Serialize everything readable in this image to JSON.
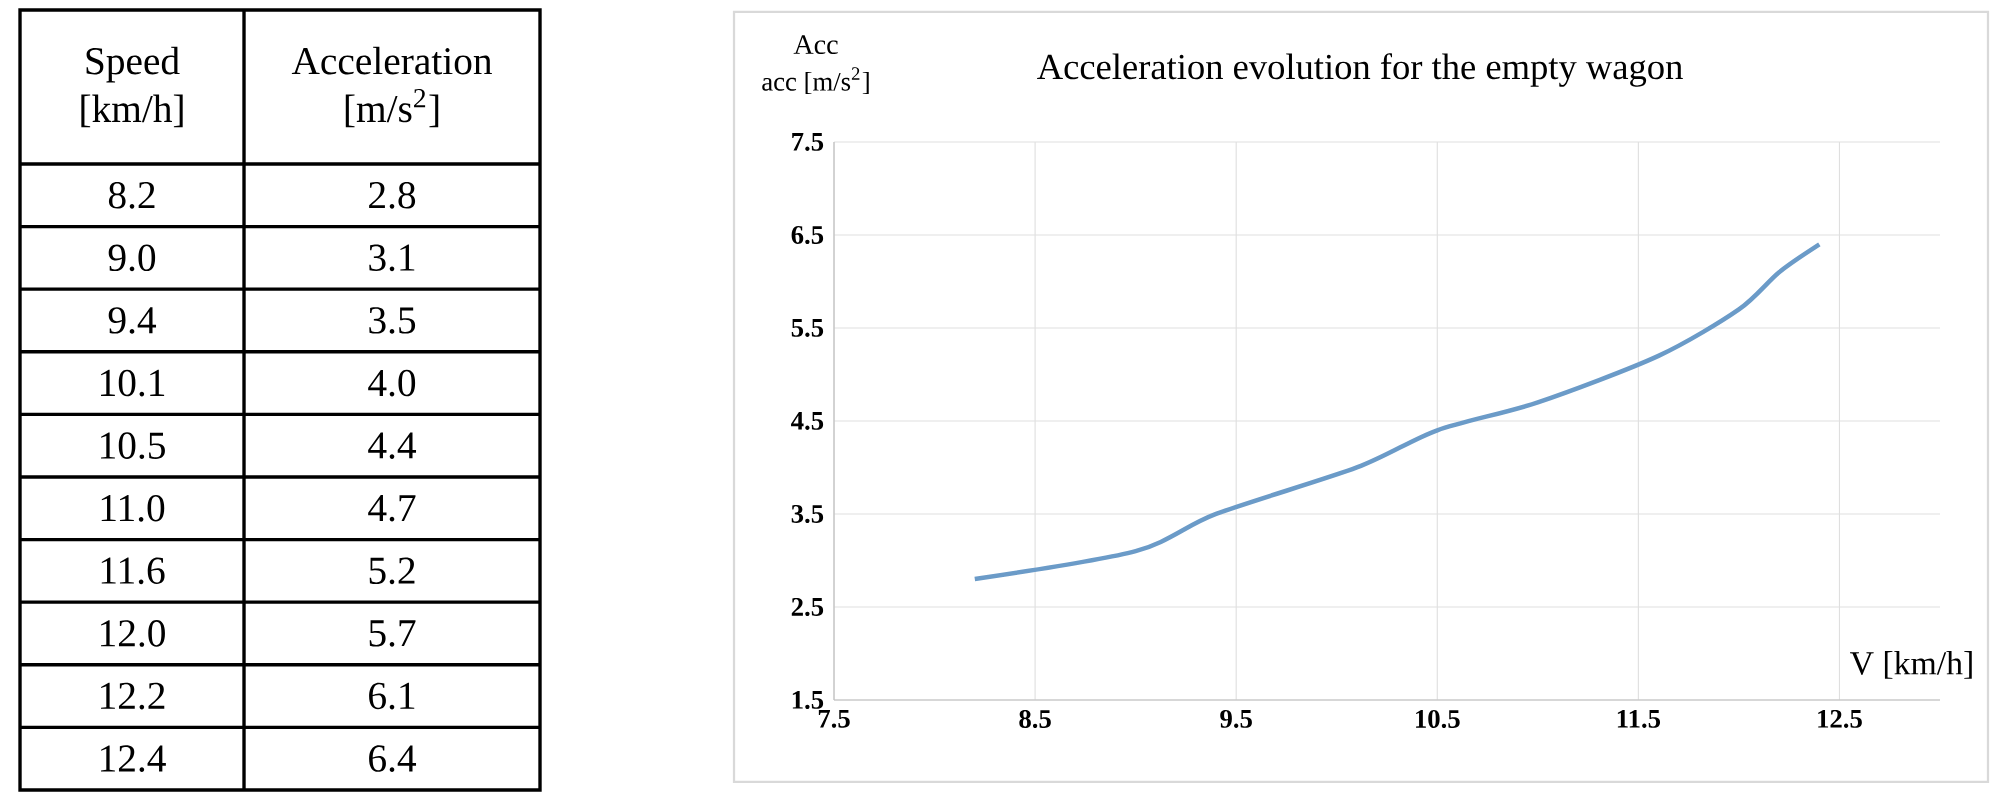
{
  "chart_data": [
    {
      "type": "other",
      "annotations": [
        "Speed [km/h]",
        "Acceleration [m/s$^{2}$]"
      ],
      "categories": [
        "8.2",
        "9.0",
        "9.4",
        "10.1",
        "10.5",
        "11.0",
        "11.6",
        "12.0",
        "12.2",
        "12.4"
      ],
      "values": [
        2.8,
        3.1,
        3.5,
        4.0,
        4.4,
        4.7,
        5.2,
        5.7,
        6.1,
        6.4
      ],
      "value_labels": [
        "2.8",
        "3.1",
        "3.5",
        "4.0",
        "4.4",
        "4.7",
        "5.2",
        "5.7",
        "6.1",
        "6.4"
      ]
    },
    {
      "type": "line",
      "title": "Acceleration evolution for the empty wagon",
      "xlabel": "V [km/h]",
      "ylabel": "acc [m/s$^{2}$]",
      "annotations": [
        "Acc"
      ],
      "x": [
        8.2,
        9.0,
        9.4,
        10.1,
        10.5,
        11.0,
        11.6,
        12.0,
        12.2,
        12.4
      ],
      "values": [
        2.8,
        3.1,
        3.5,
        4.0,
        4.4,
        4.7,
        5.2,
        5.7,
        6.1,
        6.4
      ],
      "color": "#6b9bc8",
      "xlim": [
        7.5,
        13.0
      ],
      "ylim": [
        1.5,
        7.5
      ],
      "xticks": [
        7.5,
        8.5,
        9.5,
        10.5,
        11.5,
        12.5
      ],
      "yticks": [
        1.5,
        2.5,
        3.5,
        4.5,
        5.5,
        6.5,
        7.5
      ],
      "grid": true
    }
  ]
}
